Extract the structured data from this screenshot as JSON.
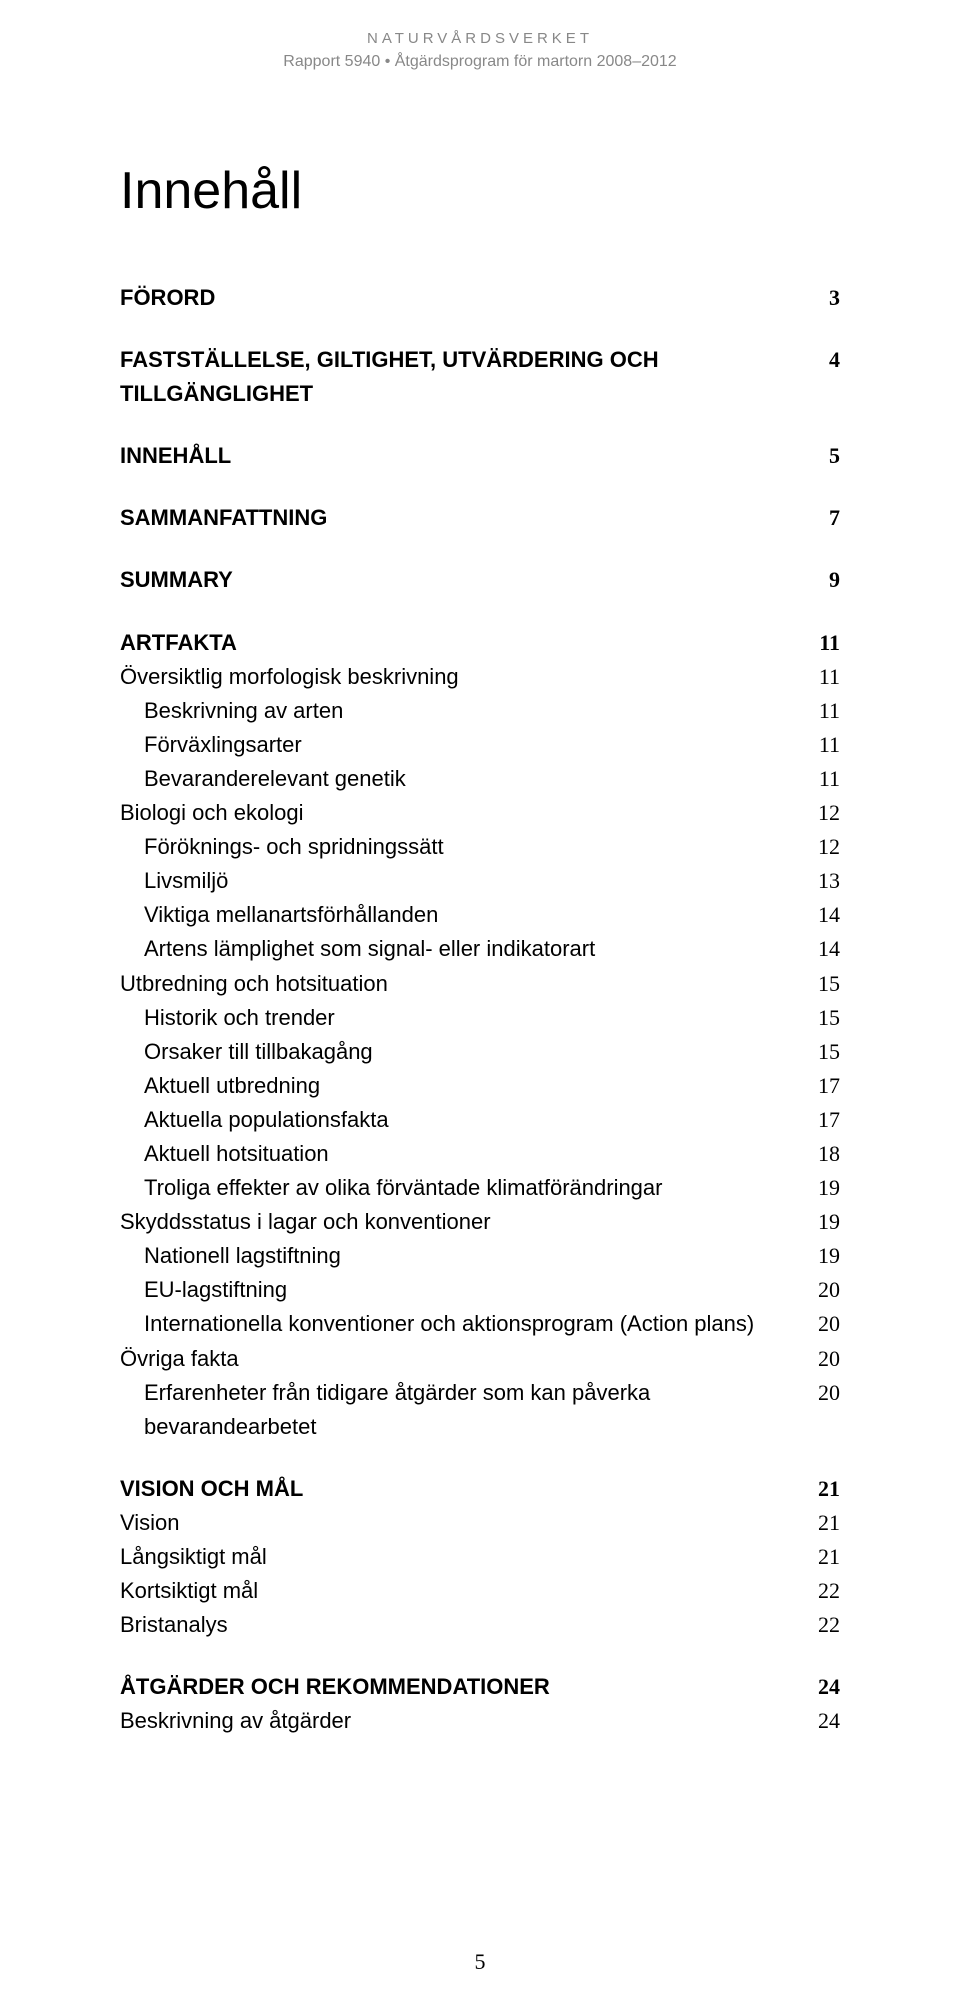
{
  "header": {
    "org": "NATURVÅRDSVERKET",
    "report": "Rapport 5940 • Åtgärdsprogram för martorn 2008–2012"
  },
  "title": "Innehåll",
  "footer_page": "5",
  "toc": [
    {
      "label": "FÖRORD",
      "page": "3",
      "bold": true,
      "indent": 0,
      "gap": false
    },
    {
      "label": "FASTSTÄLLELSE, GILTIGHET, UTVÄRDERING OCH TILLGÄNGLIGHET",
      "page": "4",
      "bold": true,
      "indent": 0,
      "gap": true
    },
    {
      "label": "INNEHÅLL",
      "page": "5",
      "bold": true,
      "indent": 0,
      "gap": true
    },
    {
      "label": "SAMMANFATTNING",
      "page": "7",
      "bold": true,
      "indent": 0,
      "gap": true
    },
    {
      "label": "SUMMARY",
      "page": "9",
      "bold": true,
      "indent": 0,
      "gap": true
    },
    {
      "label": "ARTFAKTA",
      "page": "11",
      "bold": true,
      "indent": 0,
      "gap": true
    },
    {
      "label": "Översiktlig morfologisk beskrivning",
      "page": "11",
      "bold": false,
      "indent": 0,
      "gap": false
    },
    {
      "label": "Beskrivning av arten",
      "page": "11",
      "bold": false,
      "indent": 1,
      "gap": false
    },
    {
      "label": "Förväxlingsarter",
      "page": "11",
      "bold": false,
      "indent": 1,
      "gap": false
    },
    {
      "label": "Bevaranderelevant genetik",
      "page": "11",
      "bold": false,
      "indent": 1,
      "gap": false
    },
    {
      "label": "Biologi och ekologi",
      "page": "12",
      "bold": false,
      "indent": 0,
      "gap": false
    },
    {
      "label": "Föröknings- och spridningssätt",
      "page": "12",
      "bold": false,
      "indent": 1,
      "gap": false
    },
    {
      "label": "Livsmiljö",
      "page": "13",
      "bold": false,
      "indent": 1,
      "gap": false
    },
    {
      "label": "Viktiga mellanartsförhållanden",
      "page": "14",
      "bold": false,
      "indent": 1,
      "gap": false
    },
    {
      "label": "Artens lämplighet som signal- eller indikatorart",
      "page": "14",
      "bold": false,
      "indent": 1,
      "gap": false
    },
    {
      "label": "Utbredning och hotsituation",
      "page": "15",
      "bold": false,
      "indent": 0,
      "gap": false
    },
    {
      "label": "Historik och trender",
      "page": "15",
      "bold": false,
      "indent": 1,
      "gap": false
    },
    {
      "label": "Orsaker till tillbakagång",
      "page": "15",
      "bold": false,
      "indent": 1,
      "gap": false
    },
    {
      "label": "Aktuell utbredning",
      "page": "17",
      "bold": false,
      "indent": 1,
      "gap": false
    },
    {
      "label": "Aktuella populationsfakta",
      "page": "17",
      "bold": false,
      "indent": 1,
      "gap": false
    },
    {
      "label": "Aktuell hotsituation",
      "page": "18",
      "bold": false,
      "indent": 1,
      "gap": false
    },
    {
      "label": "Troliga effekter av olika förväntade klimatförändringar",
      "page": "19",
      "bold": false,
      "indent": 1,
      "gap": false
    },
    {
      "label": "Skyddsstatus i lagar och konventioner",
      "page": "19",
      "bold": false,
      "indent": 0,
      "gap": false
    },
    {
      "label": "Nationell lagstiftning",
      "page": "19",
      "bold": false,
      "indent": 1,
      "gap": false
    },
    {
      "label": "EU-lagstiftning",
      "page": "20",
      "bold": false,
      "indent": 1,
      "gap": false
    },
    {
      "label": "Internationella konventioner och aktionsprogram (Action plans)",
      "page": "20",
      "bold": false,
      "indent": 1,
      "gap": false
    },
    {
      "label": "Övriga fakta",
      "page": "20",
      "bold": false,
      "indent": 0,
      "gap": false
    },
    {
      "label": "Erfarenheter från tidigare åtgärder som kan påverka bevarandearbetet",
      "page": "20",
      "bold": false,
      "indent": 1,
      "gap": false
    },
    {
      "label": "VISION OCH MÅL",
      "page": "21",
      "bold": true,
      "indent": 0,
      "gap": true
    },
    {
      "label": "Vision",
      "page": "21",
      "bold": false,
      "indent": 0,
      "gap": false
    },
    {
      "label": "Långsiktigt mål",
      "page": "21",
      "bold": false,
      "indent": 0,
      "gap": false
    },
    {
      "label": "Kortsiktigt mål",
      "page": "22",
      "bold": false,
      "indent": 0,
      "gap": false
    },
    {
      "label": "Bristanalys",
      "page": "22",
      "bold": false,
      "indent": 0,
      "gap": false
    },
    {
      "label": "ÅTGÄRDER OCH REKOMMENDATIONER",
      "page": "24",
      "bold": true,
      "indent": 0,
      "gap": true
    },
    {
      "label": "Beskrivning av åtgärder",
      "page": "24",
      "bold": false,
      "indent": 0,
      "gap": false
    }
  ]
}
